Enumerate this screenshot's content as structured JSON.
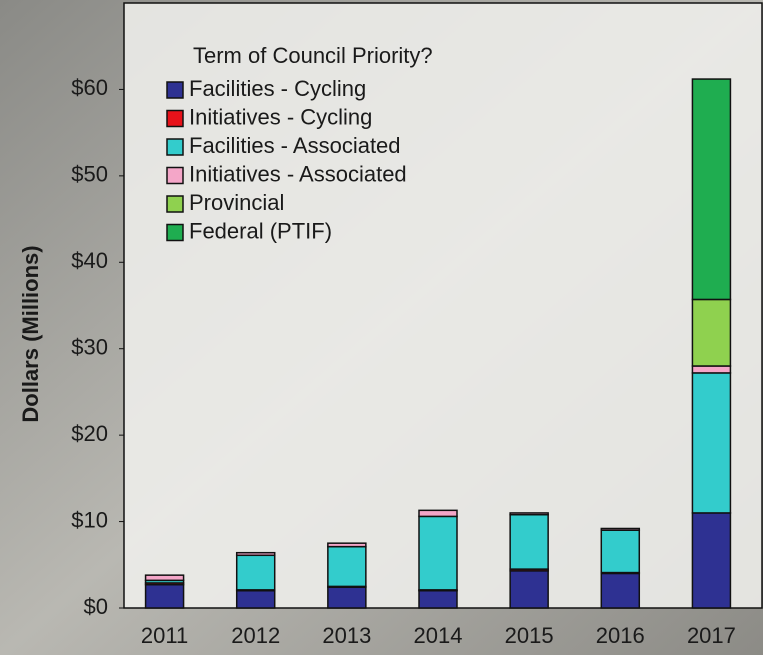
{
  "chart_data": {
    "type": "stacked_bar",
    "y_label": "Dollars (Millions)",
    "legend_title": "Term of Council Priority?",
    "categories": [
      "2011",
      "2012",
      "2013",
      "2014",
      "2015",
      "2016",
      "2017"
    ],
    "series": [
      {
        "name": "Facilities - Cycling",
        "color": "#2e3192",
        "values": [
          2.7,
          2.0,
          2.4,
          2.0,
          4.3,
          4.0,
          11.0
        ]
      },
      {
        "name": "Initiatives - Cycling",
        "color": "#e8121a",
        "values": [
          0.2,
          0.1,
          0.1,
          0.1,
          0.2,
          0.1,
          0
        ]
      },
      {
        "name": "Facilities - Associated",
        "color": "#33cccc",
        "values": [
          0.3,
          4.0,
          4.6,
          8.5,
          6.3,
          4.9,
          16.2
        ]
      },
      {
        "name": "Initiatives - Associated",
        "color": "#f4a6c8",
        "values": [
          0.6,
          0.3,
          0.4,
          0.7,
          0.2,
          0.2,
          0.8
        ]
      },
      {
        "name": "Provincial",
        "color": "#8fd14f",
        "values": [
          0,
          0,
          0,
          0,
          0,
          0,
          7.7
        ]
      },
      {
        "name": "Federal (PTIF)",
        "color": "#1fad50",
        "values": [
          0,
          0,
          0,
          0,
          0,
          0,
          25.5
        ]
      }
    ],
    "ylim": [
      0,
      70
    ],
    "yticks": [
      {
        "value": 0,
        "label": "$0"
      },
      {
        "value": 10,
        "label": "$10"
      },
      {
        "value": 20,
        "label": "$20"
      },
      {
        "value": 30,
        "label": "$30"
      },
      {
        "value": 40,
        "label": "$40"
      },
      {
        "value": 50,
        "label": "$50"
      },
      {
        "value": 60,
        "label": "$60"
      }
    ]
  }
}
